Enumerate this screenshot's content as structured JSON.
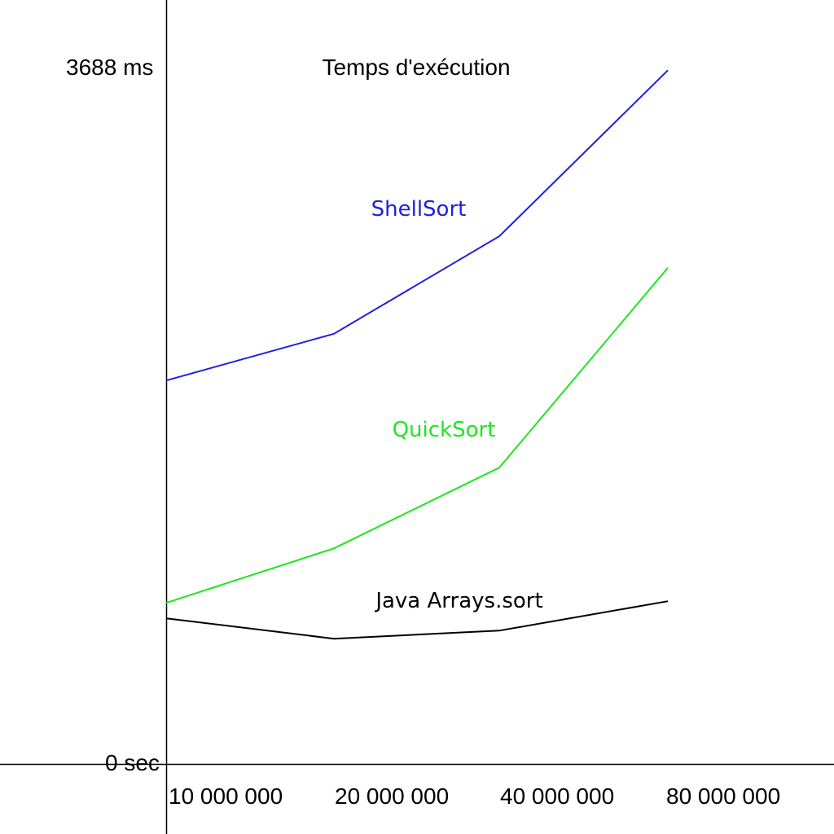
{
  "chart_data": {
    "type": "line",
    "title": "Temps d'exécution",
    "ytop_label": "3688 ms",
    "ybottom_label": "0 sec",
    "ylim": [
      0,
      3688
    ],
    "x": [
      "10 000 000",
      "20 000 000",
      "40 000 000",
      "80 000 000"
    ],
    "series": [
      {
        "name": "ShellSort",
        "color": "#1f1fe0",
        "values": [
          2033,
          2281,
          2798,
          3678
        ]
      },
      {
        "name": "QuickSort",
        "color": "#1ee61e",
        "values": [
          854,
          1143,
          1571,
          2631
        ]
      },
      {
        "name": "Java Arrays.sort",
        "color": "#000000",
        "values": [
          772,
          664,
          707,
          863
        ]
      }
    ]
  }
}
